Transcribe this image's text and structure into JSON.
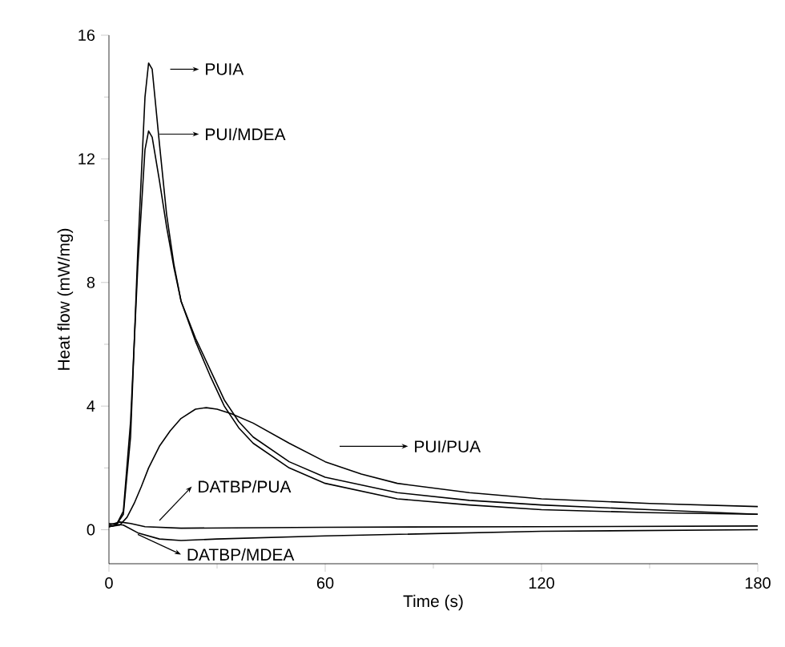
{
  "chart_data": {
    "type": "line",
    "xlabel": "Time (s)",
    "ylabel": "Heat flow (mW/mg)",
    "xlim": [
      0,
      180
    ],
    "ylim": [
      -1.1,
      16
    ],
    "xticks": [
      0,
      {
        "value": 30,
        "label": null
      },
      60,
      {
        "value": 90,
        "label": null
      },
      120,
      {
        "value": 150,
        "label": null
      },
      180
    ],
    "yticks": [
      0,
      {
        "value": 2,
        "label": null
      },
      4,
      {
        "value": 6,
        "label": null
      },
      8,
      {
        "value": 10,
        "label": null
      },
      12,
      {
        "value": 14,
        "label": null
      },
      16
    ],
    "grid": false,
    "legend": "left",
    "marker": "none",
    "line_style": "solid",
    "series": [
      {
        "name": "PUIA",
        "color": "#000000",
        "x": [
          0,
          2,
          4,
          6,
          8,
          10,
          11,
          12,
          14,
          16,
          18,
          20,
          24,
          28,
          32,
          36,
          40,
          50,
          60,
          80,
          100,
          120,
          150,
          180
        ],
        "values": [
          0.1,
          0.15,
          0.5,
          3,
          9,
          14,
          15.1,
          14.9,
          12.5,
          10.2,
          8.6,
          7.4,
          6.2,
          5.2,
          4.2,
          3.5,
          3.0,
          2.2,
          1.7,
          1.2,
          0.95,
          0.8,
          0.65,
          0.5
        ]
      },
      {
        "name": "PUI/MDEA",
        "color": "#000000",
        "x": [
          0,
          2,
          4,
          6,
          8,
          10,
          11,
          12,
          14,
          16,
          18,
          20,
          24,
          28,
          32,
          36,
          40,
          50,
          60,
          80,
          100,
          120,
          150,
          180
        ],
        "values": [
          0.1,
          0.15,
          0.6,
          3.5,
          8.5,
          12.3,
          12.9,
          12.7,
          11.3,
          9.8,
          8.5,
          7.4,
          6.1,
          5.0,
          4.0,
          3.3,
          2.8,
          2.0,
          1.5,
          1.0,
          0.8,
          0.65,
          0.55,
          0.5
        ]
      },
      {
        "name": "PUI/PUA",
        "color": "#000000",
        "x": [
          0,
          3,
          5,
          7,
          9,
          11,
          14,
          17,
          20,
          24,
          27,
          30,
          34,
          40,
          50,
          60,
          70,
          80,
          100,
          120,
          150,
          180
        ],
        "values": [
          0.1,
          0.15,
          0.4,
          0.85,
          1.4,
          2.0,
          2.7,
          3.2,
          3.6,
          3.9,
          3.95,
          3.9,
          3.75,
          3.45,
          2.8,
          2.2,
          1.8,
          1.5,
          1.2,
          1.0,
          0.85,
          0.75
        ]
      },
      {
        "name": "DATBP/PUA",
        "color": "#000000",
        "x": [
          0,
          3,
          6,
          10,
          20,
          60,
          120,
          180
        ],
        "values": [
          0.15,
          0.25,
          0.2,
          0.1,
          0.05,
          0.08,
          0.1,
          0.12
        ]
      },
      {
        "name": "DATBP/MDEA",
        "color": "#000000",
        "x": [
          0,
          4,
          8,
          14,
          20,
          30,
          60,
          120,
          180
        ],
        "values": [
          0.2,
          0.15,
          -0.1,
          -0.3,
          -0.35,
          -0.3,
          -0.2,
          -0.05,
          0.0
        ]
      }
    ]
  }
}
